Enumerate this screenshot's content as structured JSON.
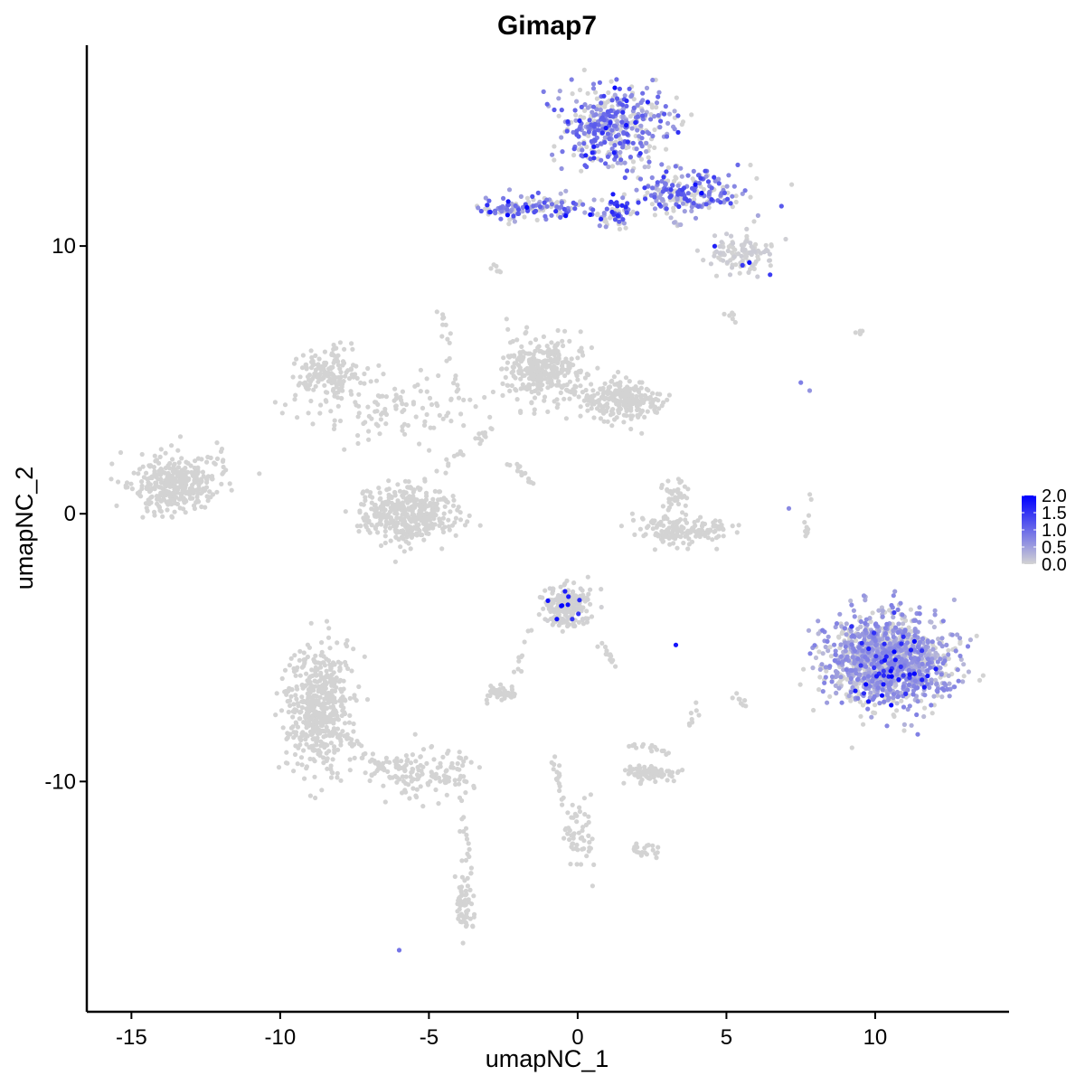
{
  "chart_data": {
    "type": "scatter",
    "title": "Gimap7",
    "xlabel": "umapNC_1",
    "ylabel": "umapNC_2",
    "xlim": [
      -16.5,
      14.5
    ],
    "ylim": [
      -18.6,
      17.5
    ],
    "x_ticks": [
      -15,
      -10,
      -5,
      0,
      5,
      10
    ],
    "y_ticks": [
      -10,
      0,
      10
    ],
    "x_tick_labels": [
      "-15",
      "-10",
      "-5",
      "0",
      "5",
      "10"
    ],
    "y_tick_labels": [
      "-10",
      "0",
      "10"
    ],
    "grid": false,
    "legend_position": "right",
    "color_scale": {
      "low": "#d3d3d3",
      "high": "#0000ff",
      "min": 0.0,
      "max": 2.0,
      "ticks": [
        0.0,
        0.5,
        1.0,
        1.5,
        2.0
      ],
      "tick_labels": [
        "0.0",
        "0.5",
        "1.0",
        "1.5",
        "2.0"
      ]
    },
    "clusters": [
      {
        "cx": 1.2,
        "cy": 14.5,
        "sx": 1.2,
        "sy": 1.0,
        "n": 420,
        "expr": 0.75
      },
      {
        "cx": 3.8,
        "cy": 12.0,
        "sx": 1.3,
        "sy": 0.5,
        "n": 200,
        "expr": 0.9
      },
      {
        "cx": -1.5,
        "cy": 11.4,
        "sx": 1.3,
        "sy": 0.35,
        "n": 140,
        "expr": 0.8
      },
      {
        "cx": 1.2,
        "cy": 11.2,
        "sx": 0.5,
        "sy": 0.4,
        "n": 60,
        "expr": 1.1
      },
      {
        "cx": 5.5,
        "cy": 9.7,
        "sx": 0.8,
        "sy": 0.5,
        "n": 110,
        "expr": 0.05
      },
      {
        "cx": -8.4,
        "cy": 5.3,
        "sx": 0.7,
        "sy": 0.6,
        "n": 150,
        "expr": 0.0
      },
      {
        "cx": -1.2,
        "cy": 5.4,
        "sx": 0.9,
        "sy": 0.8,
        "n": 300,
        "expr": 0.0
      },
      {
        "cx": 1.4,
        "cy": 4.3,
        "sx": 0.9,
        "sy": 0.5,
        "n": 240,
        "expr": 0.0
      },
      {
        "cx": -6.5,
        "cy": 4.0,
        "sx": 2.0,
        "sy": 0.8,
        "n": 120,
        "expr": 0.0
      },
      {
        "cx": -13.6,
        "cy": 1.1,
        "sx": 0.9,
        "sy": 0.7,
        "n": 330,
        "expr": 0.0
      },
      {
        "cx": -5.7,
        "cy": 0.0,
        "sx": 1.0,
        "sy": 0.7,
        "n": 380,
        "expr": 0.0
      },
      {
        "cx": 3.5,
        "cy": -0.6,
        "sx": 1.0,
        "sy": 0.35,
        "n": 160,
        "expr": 0.0
      },
      {
        "cx": 3.2,
        "cy": 0.8,
        "sx": 0.3,
        "sy": 0.4,
        "n": 35,
        "expr": 0.0
      },
      {
        "cx": -0.3,
        "cy": -3.5,
        "sx": 0.6,
        "sy": 0.6,
        "n": 210,
        "expr": 0.02
      },
      {
        "cx": -8.7,
        "cy": -7.3,
        "sx": 0.7,
        "sy": 1.6,
        "n": 520,
        "expr": 0.0
      },
      {
        "cx": -5.2,
        "cy": -9.6,
        "sx": 1.2,
        "sy": 0.6,
        "n": 140,
        "expr": 0.0
      },
      {
        "cx": 10.4,
        "cy": -5.5,
        "sx": 1.3,
        "sy": 1.1,
        "n": 1350,
        "expr": 0.5
      },
      {
        "cx": -2.6,
        "cy": -6.7,
        "sx": 0.4,
        "sy": 0.2,
        "n": 45,
        "expr": 0.0
      },
      {
        "cx": 2.4,
        "cy": -9.7,
        "sx": 0.6,
        "sy": 0.2,
        "n": 80,
        "expr": 0.0
      },
      {
        "cx": -3.8,
        "cy": -14.6,
        "sx": 0.2,
        "sy": 0.8,
        "n": 50,
        "expr": 0.0
      },
      {
        "cx": 0.0,
        "cy": -11.8,
        "sx": 0.3,
        "sy": 1.1,
        "n": 45,
        "expr": 0.0
      },
      {
        "cx": 2.3,
        "cy": -12.6,
        "sx": 0.3,
        "sy": 0.2,
        "n": 20,
        "expr": 0.0
      }
    ],
    "strands": [
      {
        "x1": -4.6,
        "y1": 7.7,
        "x2": -3.9,
        "y2": 3.9,
        "n": 20,
        "expr": 0.0
      },
      {
        "x1": -5.2,
        "y1": 1.2,
        "x2": -2.5,
        "y2": 3.5,
        "n": 25,
        "expr": 0.0
      },
      {
        "x1": -2.3,
        "y1": 2.0,
        "x2": -1.3,
        "y2": 0.9,
        "n": 15,
        "expr": 0.0
      },
      {
        "x1": -12.2,
        "y1": 2.8,
        "x2": -11.6,
        "y2": 0.8,
        "n": 12,
        "expr": 0.0
      },
      {
        "x1": -3.0,
        "y1": 9.2,
        "x2": -2.6,
        "y2": 9.0,
        "n": 6,
        "expr": 0.0
      },
      {
        "x1": -1.6,
        "y1": -4.2,
        "x2": -2.0,
        "y2": -6.0,
        "n": 10,
        "expr": 0.0
      },
      {
        "x1": 0.8,
        "y1": -4.8,
        "x2": 1.3,
        "y2": -5.8,
        "n": 12,
        "expr": 0.0
      },
      {
        "x1": -8.0,
        "y1": -8.2,
        "x2": -6.2,
        "y2": -9.8,
        "n": 30,
        "expr": 0.0
      },
      {
        "x1": -3.9,
        "y1": -10.6,
        "x2": -3.5,
        "y2": -15.5,
        "n": 25,
        "expr": 0.0
      },
      {
        "x1": -0.8,
        "y1": -9.0,
        "x2": -0.1,
        "y2": -12.7,
        "n": 25,
        "expr": 0.0
      },
      {
        "x1": 1.7,
        "y1": -8.5,
        "x2": 3.2,
        "y2": -9.0,
        "n": 15,
        "expr": 0.0
      },
      {
        "x1": 7.8,
        "y1": 0.8,
        "x2": 7.6,
        "y2": -2.0,
        "n": 10,
        "expr": 0.0
      },
      {
        "x1": 4.1,
        "y1": -7.0,
        "x2": 3.7,
        "y2": -8.2,
        "n": 8,
        "expr": 0.0
      },
      {
        "x1": 2.3,
        "y1": 13.0,
        "x2": 3.4,
        "y2": 10.6,
        "n": 20,
        "expr": 0.3
      },
      {
        "x1": 5.0,
        "y1": 7.7,
        "x2": 5.4,
        "y2": 7.2,
        "n": 6,
        "expr": 0.0
      },
      {
        "x1": -1.5,
        "y1": 5.3,
        "x2": 1.0,
        "y2": 3.9,
        "n": 30,
        "expr": 0.0
      },
      {
        "x1": 5.8,
        "y1": -7.3,
        "x2": 5.2,
        "y2": -6.8,
        "n": 8,
        "expr": 0.0
      },
      {
        "x1": 9.4,
        "y1": 6.8,
        "x2": 9.7,
        "y2": 6.8,
        "n": 4,
        "expr": 0.0
      }
    ],
    "points": [
      {
        "x": 7.5,
        "y": 4.9,
        "v": 0.8
      },
      {
        "x": 7.8,
        "y": 4.6,
        "v": 0.6
      },
      {
        "x": -6.0,
        "y": -16.3,
        "v": 0.9
      },
      {
        "x": 3.3,
        "y": -4.9,
        "v": 1.8
      },
      {
        "x": 7.1,
        "y": 0.2,
        "v": 0.7
      },
      {
        "x": -10.7,
        "y": 1.5,
        "v": 0.0
      },
      {
        "x": 0.5,
        "y": -13.9,
        "v": 0.0
      }
    ]
  }
}
